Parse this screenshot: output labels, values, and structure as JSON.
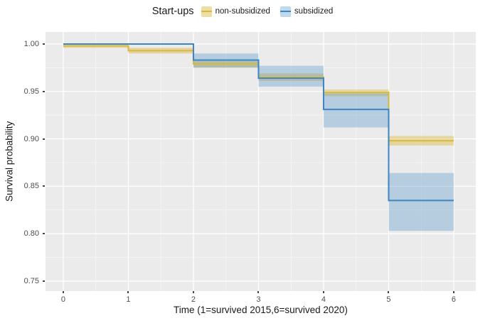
{
  "legend": {
    "title": "Start-ups",
    "items": [
      {
        "label": "non-subsidized",
        "line_color": "#d8b93c",
        "fill_color": "#ecdfa6"
      },
      {
        "label": "subsidized",
        "line_color": "#3d85c4",
        "fill_color": "#bfd9ec"
      }
    ]
  },
  "chart_data": {
    "type": "line",
    "subtype": "kaplan-meier-survival-step",
    "title": "Start-ups",
    "xlabel": "Time (1=survived 2015,6=survived 2020)",
    "ylabel": "Survival probability",
    "legend_position": "top",
    "grid": true,
    "panel_bg": "#ebebeb",
    "grid_color": "#ffffff",
    "xlim": [
      -0.273,
      6.339
    ],
    "ylim": [
      0.7395,
      1.0127
    ],
    "x_ticks": [
      {
        "label": "0",
        "value": 0
      },
      {
        "label": "1",
        "value": 1
      },
      {
        "label": "2",
        "value": 2
      },
      {
        "label": "3",
        "value": 3
      },
      {
        "label": "4",
        "value": 4
      },
      {
        "label": "5",
        "value": 5
      },
      {
        "label": "6",
        "value": 6
      }
    ],
    "y_ticks": [
      {
        "label": "1.00",
        "value": 1.0
      },
      {
        "label": "0.95",
        "value": 0.95
      },
      {
        "label": "0.90",
        "value": 0.9
      },
      {
        "label": "0.85",
        "value": 0.85
      },
      {
        "label": "0.80",
        "value": 0.8
      },
      {
        "label": "0.75",
        "value": 0.75
      }
    ],
    "interval_edges": [
      0,
      1,
      2,
      3,
      4,
      5,
      6
    ],
    "series": [
      {
        "name": "non-subsidized",
        "line_color": "#d8b93c",
        "band_color": "rgba(216,176,40,0.38)",
        "step_values": [
          0.998,
          0.993,
          0.979,
          0.965,
          0.949,
          0.898
        ],
        "ci_lower": [
          0.996,
          0.99,
          0.975,
          0.961,
          0.945,
          0.893
        ],
        "ci_upper": [
          1.0,
          0.996,
          0.982,
          0.969,
          0.952,
          0.903
        ]
      },
      {
        "name": "subsidized",
        "line_color": "#3d85c4",
        "band_color": "rgba(70,140,200,0.32)",
        "step_values": [
          1.0,
          1.0,
          0.983,
          0.964,
          0.931,
          0.835
        ],
        "ci_lower": [
          1.0,
          1.0,
          0.975,
          0.955,
          0.912,
          0.803
        ],
        "ci_upper": [
          1.0,
          1.0,
          0.99,
          0.977,
          0.948,
          0.864
        ]
      }
    ]
  }
}
